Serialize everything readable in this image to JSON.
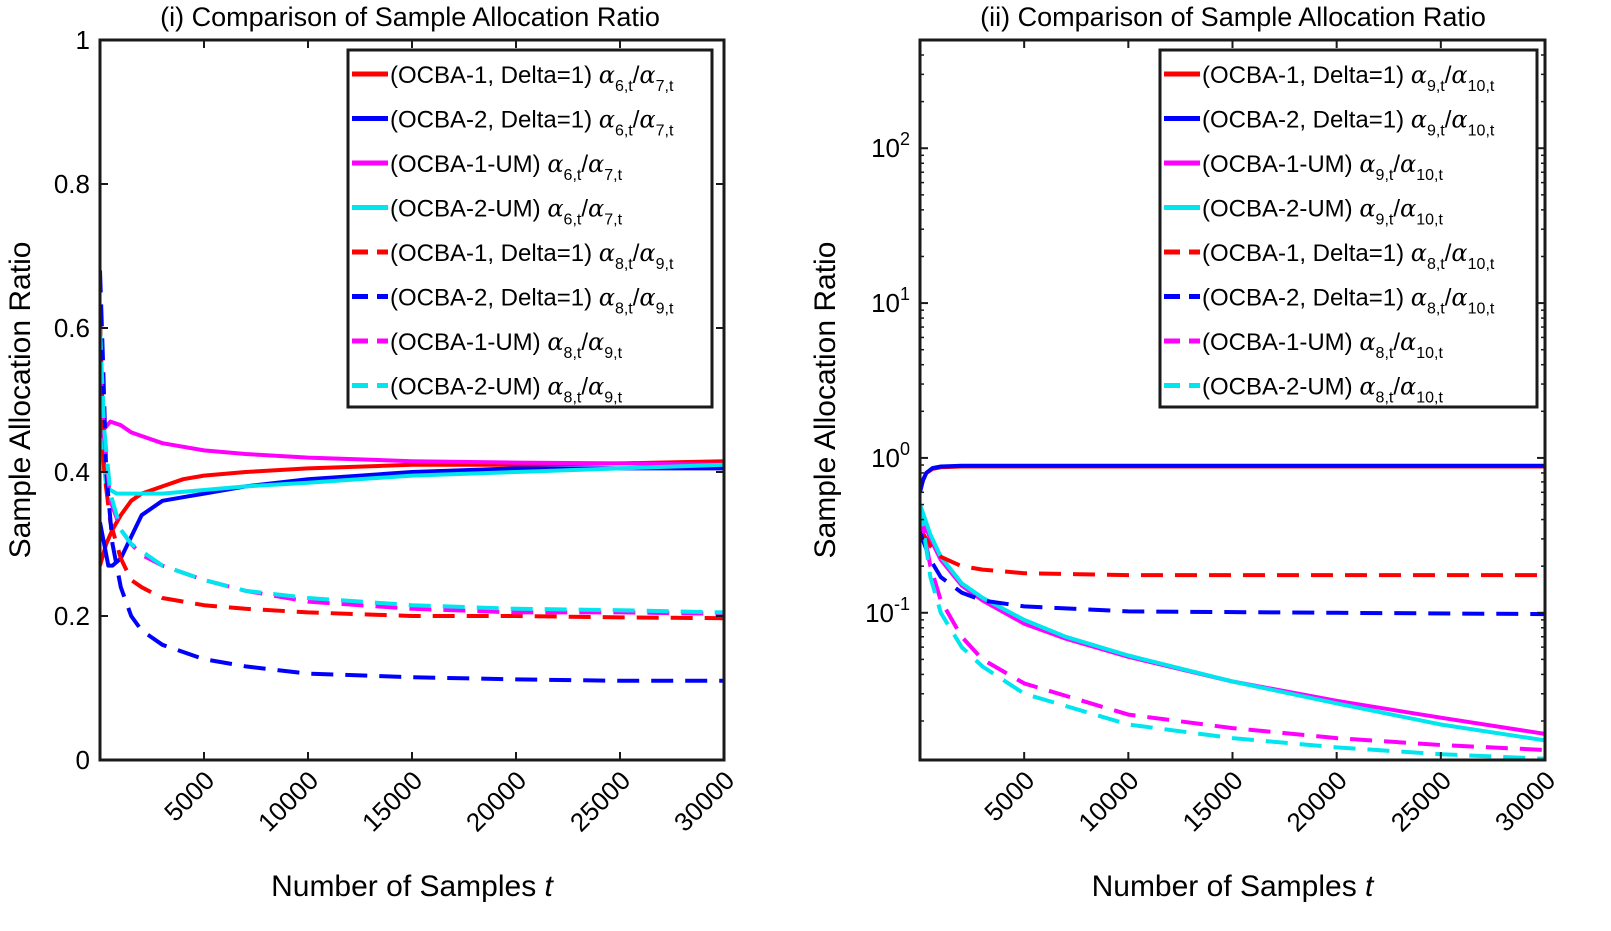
{
  "chart_data": [
    {
      "type": "line",
      "title": "(i) Comparison of Sample Allocation Ratio",
      "xlabel": "Number of Samples",
      "xlabel_var": "t",
      "ylabel": "Sample Allocation Ratio",
      "xlim": [
        0,
        30000
      ],
      "ylim": [
        0,
        1
      ],
      "yscale": "linear",
      "xticks": [
        5000,
        10000,
        15000,
        20000,
        25000,
        30000
      ],
      "xtick_labels": [
        "5000",
        "10000",
        "15000",
        "20000",
        "25000",
        "30000"
      ],
      "yticks": [
        0,
        0.2,
        0.4,
        0.6,
        0.8,
        1
      ],
      "ytick_labels": [
        "0",
        "0.2",
        "0.4",
        "0.6",
        "0.8",
        "1"
      ],
      "legend_position": "top-right",
      "series": [
        {
          "name": "(OCBA-1, Delta=1)",
          "ratio": {
            "a": "6",
            "b": "7"
          },
          "color": "#ff0000",
          "dash": false,
          "x": [
            0,
            300,
            600,
            1000,
            1500,
            2000,
            3000,
            4000,
            5000,
            7000,
            10000,
            15000,
            20000,
            25000,
            30000
          ],
          "y": [
            0.27,
            0.3,
            0.32,
            0.34,
            0.36,
            0.37,
            0.38,
            0.39,
            0.395,
            0.4,
            0.405,
            0.41,
            0.41,
            0.412,
            0.415
          ]
        },
        {
          "name": "(OCBA-2, Delta=1)",
          "ratio": {
            "a": "6",
            "b": "7"
          },
          "color": "#0000ff",
          "dash": false,
          "x": [
            0,
            200,
            400,
            600,
            1000,
            1500,
            2000,
            3000,
            4000,
            5000,
            7000,
            10000,
            15000,
            20000,
            25000,
            30000
          ],
          "y": [
            0.33,
            0.3,
            0.27,
            0.27,
            0.28,
            0.31,
            0.34,
            0.36,
            0.365,
            0.37,
            0.38,
            0.39,
            0.4,
            0.405,
            0.405,
            0.405
          ]
        },
        {
          "name": "(OCBA-1-UM)",
          "ratio": {
            "a": "6",
            "b": "7"
          },
          "color": "#ff00ff",
          "dash": false,
          "x": [
            0,
            200,
            500,
            1000,
            1500,
            2000,
            3000,
            5000,
            7000,
            10000,
            15000,
            20000,
            25000,
            30000
          ],
          "y": [
            0.42,
            0.46,
            0.47,
            0.465,
            0.455,
            0.45,
            0.44,
            0.43,
            0.425,
            0.42,
            0.415,
            0.413,
            0.412,
            0.41
          ]
        },
        {
          "name": "(OCBA-2-UM)",
          "ratio": {
            "a": "6",
            "b": "7"
          },
          "color": "#00e5ee",
          "dash": false,
          "x": [
            0,
            150,
            300,
            500,
            800,
            1200,
            2000,
            3000,
            5000,
            7000,
            10000,
            15000,
            20000,
            25000,
            30000
          ],
          "y": [
            0.45,
            0.42,
            0.38,
            0.375,
            0.37,
            0.37,
            0.37,
            0.37,
            0.375,
            0.38,
            0.385,
            0.395,
            0.4,
            0.405,
            0.41
          ]
        },
        {
          "name": "(OCBA-1, Delta=1)",
          "ratio": {
            "a": "8",
            "b": "9"
          },
          "color": "#ff0000",
          "dash": true,
          "x": [
            0,
            200,
            500,
            1000,
            1500,
            2000,
            3000,
            5000,
            7000,
            10000,
            15000,
            20000,
            25000,
            30000
          ],
          "y": [
            0.62,
            0.4,
            0.33,
            0.28,
            0.25,
            0.24,
            0.225,
            0.215,
            0.21,
            0.205,
            0.2,
            0.2,
            0.198,
            0.197
          ]
        },
        {
          "name": "(OCBA-2, Delta=1)",
          "ratio": {
            "a": "8",
            "b": "9"
          },
          "color": "#0000ff",
          "dash": true,
          "x": [
            0,
            150,
            300,
            600,
            1000,
            1500,
            2000,
            3000,
            4000,
            5000,
            7000,
            10000,
            15000,
            20000,
            25000,
            30000
          ],
          "y": [
            0.68,
            0.55,
            0.4,
            0.3,
            0.24,
            0.2,
            0.18,
            0.16,
            0.15,
            0.14,
            0.13,
            0.12,
            0.115,
            0.112,
            0.11,
            0.11
          ]
        },
        {
          "name": "(OCBA-1-UM)",
          "ratio": {
            "a": "8",
            "b": "9"
          },
          "color": "#ff00ff",
          "dash": true,
          "x": [
            0,
            200,
            500,
            1000,
            1500,
            2000,
            3000,
            5000,
            7000,
            10000,
            15000,
            20000,
            25000,
            30000
          ],
          "y": [
            0.55,
            0.45,
            0.36,
            0.32,
            0.3,
            0.285,
            0.27,
            0.25,
            0.235,
            0.22,
            0.21,
            0.205,
            0.205,
            0.203
          ]
        },
        {
          "name": "(OCBA-2-UM)",
          "ratio": {
            "a": "8",
            "b": "9"
          },
          "color": "#00e5ee",
          "dash": true,
          "x": [
            0,
            200,
            500,
            1000,
            1500,
            2000,
            3000,
            5000,
            7000,
            10000,
            15000,
            20000,
            25000,
            30000
          ],
          "y": [
            0.6,
            0.46,
            0.37,
            0.32,
            0.3,
            0.29,
            0.27,
            0.25,
            0.235,
            0.225,
            0.215,
            0.21,
            0.208,
            0.205
          ]
        }
      ]
    },
    {
      "type": "line",
      "title": "(ii) Comparison of Sample Allocation Ratio",
      "xlabel": "Number of Samples",
      "xlabel_var": "t",
      "ylabel": "Sample Allocation Ratio",
      "xlim": [
        0,
        30000
      ],
      "ylim": [
        0.0112,
        500
      ],
      "yscale": "log",
      "xticks": [
        5000,
        10000,
        15000,
        20000,
        25000,
        30000
      ],
      "xtick_labels": [
        "5000",
        "10000",
        "15000",
        "20000",
        "25000",
        "30000"
      ],
      "yticks": [
        0.1,
        1,
        10,
        100
      ],
      "ytick_labels": [
        {
          "base": "10",
          "exp": "-1"
        },
        {
          "base": "10",
          "exp": "0"
        },
        {
          "base": "10",
          "exp": "1"
        },
        {
          "base": "10",
          "exp": "2"
        }
      ],
      "legend_position": "top-right",
      "series": [
        {
          "name": "(OCBA-1, Delta=1)",
          "ratio": {
            "a": "9",
            "b": "10"
          },
          "color": "#ff0000",
          "dash": false,
          "x": [
            0,
            150,
            300,
            600,
            1000,
            2000,
            3000,
            5000,
            10000,
            20000,
            30000
          ],
          "y": [
            0.65,
            0.72,
            0.8,
            0.85,
            0.87,
            0.88,
            0.88,
            0.88,
            0.88,
            0.88,
            0.88
          ]
        },
        {
          "name": "(OCBA-2, Delta=1)",
          "ratio": {
            "a": "9",
            "b": "10"
          },
          "color": "#0000ff",
          "dash": false,
          "x": [
            0,
            150,
            300,
            600,
            1000,
            2000,
            3000,
            5000,
            10000,
            20000,
            30000
          ],
          "y": [
            0.6,
            0.72,
            0.8,
            0.86,
            0.88,
            0.89,
            0.89,
            0.89,
            0.89,
            0.89,
            0.89
          ]
        },
        {
          "name": "(OCBA-1-UM)",
          "ratio": {
            "a": "9",
            "b": "10"
          },
          "color": "#ff00ff",
          "dash": false,
          "x": [
            0,
            500,
            1000,
            2000,
            3000,
            5000,
            7000,
            10000,
            15000,
            20000,
            25000,
            30000
          ],
          "y": [
            0.45,
            0.3,
            0.22,
            0.15,
            0.12,
            0.085,
            0.068,
            0.052,
            0.036,
            0.027,
            0.021,
            0.0165
          ]
        },
        {
          "name": "(OCBA-2-UM)",
          "ratio": {
            "a": "9",
            "b": "10"
          },
          "color": "#00e5ee",
          "dash": false,
          "x": [
            0,
            500,
            1000,
            2000,
            3000,
            5000,
            7000,
            10000,
            15000,
            20000,
            25000,
            30000
          ],
          "y": [
            0.5,
            0.32,
            0.23,
            0.155,
            0.125,
            0.09,
            0.07,
            0.053,
            0.036,
            0.026,
            0.019,
            0.015
          ]
        },
        {
          "name": "(OCBA-1, Delta=1)",
          "ratio": {
            "a": "8",
            "b": "10"
          },
          "color": "#ff0000",
          "dash": true,
          "x": [
            0,
            500,
            1000,
            2000,
            3000,
            5000,
            10000,
            20000,
            30000
          ],
          "y": [
            0.35,
            0.27,
            0.23,
            0.2,
            0.19,
            0.18,
            0.175,
            0.175,
            0.175
          ]
        },
        {
          "name": "(OCBA-2, Delta=1)",
          "ratio": {
            "a": "8",
            "b": "10"
          },
          "color": "#0000ff",
          "dash": true,
          "x": [
            0,
            500,
            1000,
            2000,
            3000,
            5000,
            10000,
            20000,
            30000
          ],
          "y": [
            0.33,
            0.22,
            0.17,
            0.135,
            0.12,
            0.11,
            0.102,
            0.1,
            0.098
          ]
        },
        {
          "name": "(OCBA-1-UM)",
          "ratio": {
            "a": "8",
            "b": "10"
          },
          "color": "#ff00ff",
          "dash": true,
          "x": [
            0,
            500,
            1000,
            2000,
            3000,
            5000,
            10000,
            15000,
            20000,
            25000,
            30000
          ],
          "y": [
            0.45,
            0.2,
            0.12,
            0.07,
            0.05,
            0.035,
            0.022,
            0.018,
            0.0155,
            0.014,
            0.013
          ]
        },
        {
          "name": "(OCBA-2-UM)",
          "ratio": {
            "a": "8",
            "b": "10"
          },
          "color": "#00e5ee",
          "dash": true,
          "x": [
            0,
            500,
            1000,
            2000,
            3000,
            5000,
            10000,
            15000,
            20000,
            25000,
            30000
          ],
          "y": [
            0.5,
            0.17,
            0.1,
            0.06,
            0.045,
            0.03,
            0.019,
            0.0155,
            0.0135,
            0.0122,
            0.0114
          ]
        }
      ]
    }
  ]
}
